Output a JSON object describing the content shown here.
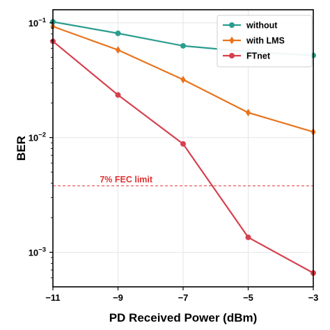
{
  "chart_data": {
    "type": "line",
    "title": "",
    "xlabel": "PD Received Power (dBm)",
    "ylabel": "BER",
    "x": [
      -11,
      -9,
      -7,
      -5,
      -3
    ],
    "xlim": [
      -11,
      -3
    ],
    "ylim": [
      0.0005,
      0.13
    ],
    "y_scale": "log",
    "grid": true,
    "legend_position": "top-right",
    "x_ticks": [
      "−11",
      "−9",
      "−7",
      "−5",
      "−3"
    ],
    "y_ticks": [
      {
        "value": 0.1,
        "base": "10",
        "exp": "−1"
      },
      {
        "value": 0.01,
        "base": "10",
        "exp": "−2"
      },
      {
        "value": 0.001,
        "base": "10",
        "exp": "−3"
      }
    ],
    "series": [
      {
        "name": "without",
        "color": "#2a9d8f",
        "marker": "circle",
        "values": [
          0.102,
          0.081,
          0.063,
          0.056,
          0.052
        ]
      },
      {
        "name": "with LMS",
        "color": "#e8731c",
        "marker": "diamond",
        "values": [
          0.093,
          0.058,
          0.032,
          0.0165,
          0.0112
        ]
      },
      {
        "name": "FTnet",
        "color": "#d6404e",
        "marker": "circle",
        "values": [
          0.069,
          0.0235,
          0.0088,
          0.00135,
          0.00066
        ]
      }
    ],
    "annotations": [
      {
        "text": "7% FEC limit",
        "y": 0.0038,
        "color": "#e03030"
      }
    ]
  }
}
